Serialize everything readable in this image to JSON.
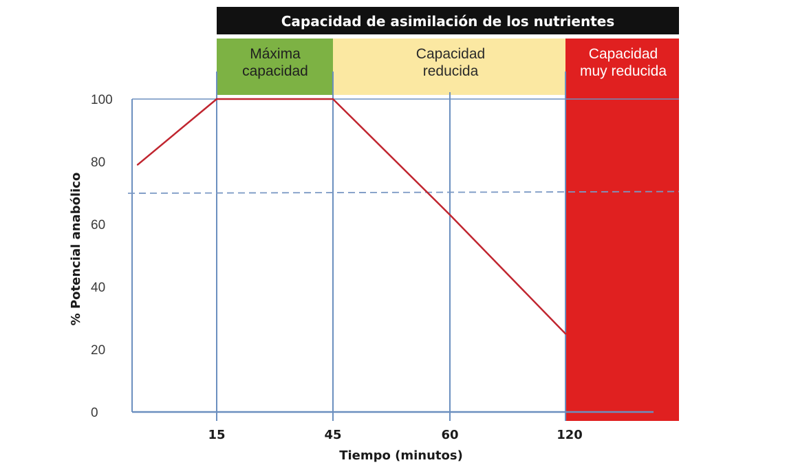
{
  "chart_data": {
    "type": "line",
    "title": "Capacidad de asimilación de los nutrientes",
    "xlabel": "Tiempo (minutos)",
    "ylabel": "% Potencial anabólico",
    "ylim": [
      0,
      100
    ],
    "y_ticks": [
      "0",
      "20",
      "40",
      "60",
      "80",
      "100"
    ],
    "x_ticks": [
      "15",
      "45",
      "60",
      "120"
    ],
    "series": [
      {
        "name": "Potencial anabólico",
        "color": "#c0252f",
        "points": [
          {
            "x": "0",
            "y": 79
          },
          {
            "x": "15",
            "y": 100
          },
          {
            "x": "45",
            "y": 100
          },
          {
            "x": "60",
            "y": 63
          },
          {
            "x": "120",
            "y": 25
          }
        ]
      }
    ],
    "reference_line": {
      "y": 70,
      "style": "dashed",
      "color": "#7a98c4"
    },
    "bands": [
      {
        "label_line1": "Máxima",
        "label_line2": "capacidad",
        "from": "15",
        "to": "45",
        "color": "#7db244",
        "text_color": "#1f1f1f"
      },
      {
        "label_line1": "Capacidad",
        "label_line2": "reducida",
        "from": "45",
        "to": "120",
        "color": "#fbe8a2",
        "text_color": "#2a2a2a"
      },
      {
        "label_line1": "Capacidad",
        "label_line2": "muy reducida",
        "from": "120",
        "to": "end",
        "color": "#e02020",
        "text_color": "#ffffff"
      }
    ],
    "title_bar_color": "#111111",
    "grid_color": "#6b8fbf"
  }
}
